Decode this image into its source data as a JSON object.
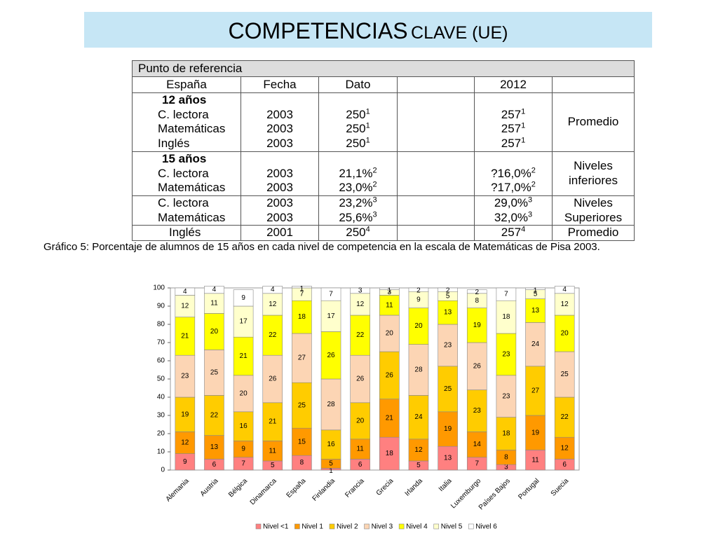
{
  "header": {
    "title_main": "COMPETENCIAS",
    "title_rest": "CLAVE (UE)"
  },
  "table": {
    "header": "Punto de referencia",
    "columns": [
      "España",
      "Fecha",
      "Dato",
      "2012"
    ],
    "groups": [
      {
        "title": "12 años",
        "rows": [
          {
            "label": "C. lectora",
            "fecha": "2003",
            "dato": "250",
            "dato_note": "1",
            "meta": "257",
            "meta_note": "1"
          },
          {
            "label": "Matemáticas",
            "fecha": "2003",
            "dato": "250",
            "dato_note": "1",
            "meta": "257",
            "meta_note": "1"
          },
          {
            "label": "Inglés",
            "fecha": "2003",
            "dato": "250",
            "dato_note": "1",
            "meta": "257",
            "meta_note": "1"
          }
        ],
        "remark": [
          "Promedio"
        ]
      },
      {
        "title": "15 años",
        "rows": [
          {
            "label": "C. lectora",
            "fecha": "2003",
            "dato": "21,1%",
            "dato_note": "2",
            "meta": "?16,0%",
            "meta_note": "2"
          },
          {
            "label": "Matemáticas",
            "fecha": "2003",
            "dato": "23,0%",
            "dato_note": "2",
            "meta": "?17,0%",
            "meta_note": "2"
          }
        ],
        "remark": [
          "Niveles",
          "inferiores"
        ]
      },
      {
        "rows": [
          {
            "label": "C. lectora",
            "fecha": "2003",
            "dato": "23,2%",
            "dato_note": "3",
            "meta": "29,0%",
            "meta_note": "3"
          },
          {
            "label": "Matemáticas",
            "fecha": "2003",
            "dato": "25,6%",
            "dato_note": "3",
            "meta": "32,0%",
            "meta_note": "3"
          }
        ],
        "remark": [
          "Niveles",
          "Superiores"
        ]
      },
      {
        "rows": [
          {
            "label": "Inglés",
            "fecha": "2001",
            "dato": "250",
            "dato_note": "4",
            "meta": "257",
            "meta_note": "4"
          }
        ],
        "remark": [
          "Promedio"
        ]
      }
    ]
  },
  "caption": "Gráfico 5: Porcentaje de alumnos  de 15 años en cada nivel de competencia en la escala de Matemáticas de Pisa 2003.",
  "chart_data": {
    "type": "stacked_bar",
    "categories": [
      "Alemania",
      "Austria",
      "Bélgica",
      "Dinamarca",
      "España",
      "Finlandia",
      "Francia",
      "Grecia",
      "Irlanda",
      "Italia",
      "Luxemburgo",
      "Países Bajos",
      "Portugal",
      "Suecia"
    ],
    "series": [
      {
        "name": "Nivel <1",
        "color": "#ff8080",
        "values": [
          9,
          6,
          7,
          5,
          8,
          1,
          6,
          18,
          5,
          13,
          7,
          3,
          11,
          6
        ]
      },
      {
        "name": "Nivel 1",
        "color": "#ff9900",
        "values": [
          12,
          13,
          9,
          11,
          15,
          5,
          11,
          21,
          12,
          19,
          14,
          8,
          19,
          12
        ]
      },
      {
        "name": "Nivel 2",
        "color": "#ffcc00",
        "values": [
          19,
          22,
          16,
          21,
          25,
          16,
          20,
          26,
          24,
          25,
          23,
          18,
          27,
          22
        ]
      },
      {
        "name": "Nivel 3",
        "color": "#fcd5b4",
        "values": [
          23,
          25,
          20,
          26,
          27,
          28,
          26,
          20,
          28,
          23,
          26,
          23,
          24,
          25
        ]
      },
      {
        "name": "Nivel 4",
        "color": "#ffff00",
        "values": [
          21,
          20,
          21,
          22,
          18,
          26,
          22,
          11,
          20,
          13,
          19,
          23,
          13,
          20
        ]
      },
      {
        "name": "Nivel 5",
        "color": "#ffffcc",
        "values": [
          12,
          11,
          17,
          12,
          7,
          17,
          12,
          3,
          9,
          5,
          8,
          18,
          5,
          12
        ]
      },
      {
        "name": "Nivel 6",
        "color": "#ffffff",
        "values": [
          4,
          4,
          9,
          4,
          1,
          7,
          3,
          1,
          2,
          2,
          2,
          7,
          1,
          4
        ]
      }
    ],
    "ylim": [
      0,
      100
    ],
    "yticks": [
      0,
      10,
      20,
      30,
      40,
      50,
      60,
      70,
      80,
      90,
      100
    ],
    "legend": "bottom"
  }
}
